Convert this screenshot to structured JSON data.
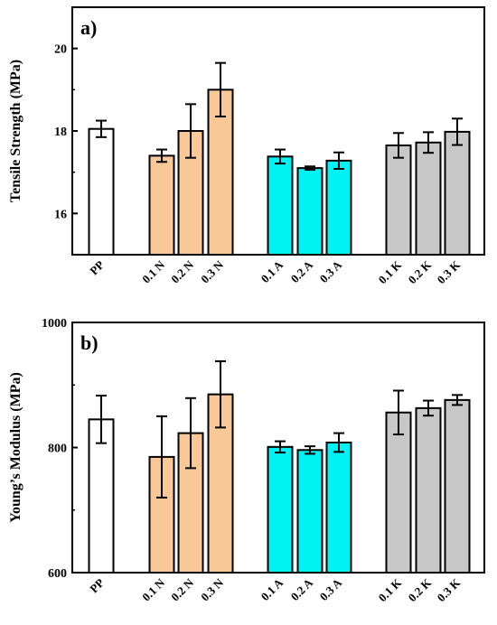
{
  "chart_data": [
    {
      "type": "bar",
      "panel_label": "a)",
      "ylabel": "Tensile Strength (MPa)",
      "ylim": [
        15,
        21
      ],
      "yticks": [
        "16",
        "18",
        "20"
      ],
      "categories": [
        "PP",
        "0.1 N",
        "0.2 N",
        "0.3 N",
        "0.1 A",
        "0.2 A",
        "0.3 A",
        "0.1 K",
        "0.2 K",
        "0.3 K"
      ],
      "values": [
        18.05,
        17.4,
        18.0,
        19.0,
        17.38,
        17.1,
        17.28,
        17.65,
        17.72,
        17.98
      ],
      "errors": [
        0.2,
        0.15,
        0.65,
        0.65,
        0.17,
        0.04,
        0.2,
        0.3,
        0.25,
        0.32
      ],
      "colors": [
        "#ffffff",
        "#f8c896",
        "#f8c896",
        "#f8c896",
        "#00f2f2",
        "#00f2f2",
        "#00f2f2",
        "#c8c8c8",
        "#c8c8c8",
        "#c8c8c8"
      ]
    },
    {
      "type": "bar",
      "panel_label": "b)",
      "ylabel": "Young’s Modulus (MPa)",
      "ylim": [
        600,
        1000
      ],
      "yticks": [
        "600",
        "800",
        "1000"
      ],
      "categories": [
        "PP",
        "0.1 N",
        "0.2 N",
        "0.3 N",
        "0.1 A",
        "0.2 A",
        "0.3 A",
        "0.1 K",
        "0.2 K",
        "0.3 K"
      ],
      "values": [
        845,
        785,
        823,
        885,
        801,
        796,
        808,
        856,
        863,
        876
      ],
      "errors": [
        38,
        65,
        56,
        53,
        9,
        6,
        15,
        35,
        12,
        8
      ],
      "colors": [
        "#ffffff",
        "#f8c896",
        "#f8c896",
        "#f8c896",
        "#00f2f2",
        "#00f2f2",
        "#00f2f2",
        "#c8c8c8",
        "#c8c8c8",
        "#c8c8c8"
      ]
    }
  ]
}
